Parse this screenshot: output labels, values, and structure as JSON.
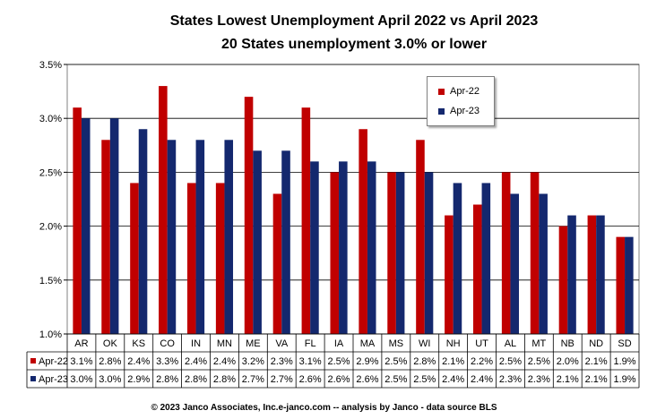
{
  "chart_data": {
    "type": "bar",
    "title": "States Lowest Unemployment April 2022 vs April 2023",
    "subtitle": "20 States  unemployment 3.0% or lower",
    "categories": [
      "AR",
      "OK",
      "KS",
      "CO",
      "IN",
      "MN",
      "ME",
      "VA",
      "FL",
      "IA",
      "MA",
      "MS",
      "WI",
      "NH",
      "UT",
      "AL",
      "MT",
      "NB",
      "ND",
      "SD"
    ],
    "series": [
      {
        "name": "Apr-22",
        "color": "#c00000",
        "values": [
          3.1,
          2.8,
          2.4,
          3.3,
          2.4,
          2.4,
          3.2,
          2.3,
          3.1,
          2.5,
          2.9,
          2.5,
          2.8,
          2.1,
          2.2,
          2.5,
          2.5,
          2.0,
          2.1,
          1.9
        ],
        "labels": [
          "3.1%",
          "2.8%",
          "2.4%",
          "3.3%",
          "2.4%",
          "2.4%",
          "3.2%",
          "2.3%",
          "3.1%",
          "2.5%",
          "2.9%",
          "2.5%",
          "2.8%",
          "2.1%",
          "2.2%",
          "2.5%",
          "2.5%",
          "2.0%",
          "2.1%",
          "1.9%"
        ]
      },
      {
        "name": "Apr-23",
        "color": "#14286e",
        "values": [
          3.0,
          3.0,
          2.9,
          2.8,
          2.8,
          2.8,
          2.7,
          2.7,
          2.6,
          2.6,
          2.6,
          2.5,
          2.5,
          2.4,
          2.4,
          2.3,
          2.3,
          2.1,
          2.1,
          1.9
        ],
        "labels": [
          "3.0%",
          "3.0%",
          "2.9%",
          "2.8%",
          "2.8%",
          "2.8%",
          "2.7%",
          "2.7%",
          "2.6%",
          "2.6%",
          "2.6%",
          "2.5%",
          "2.5%",
          "2.4%",
          "2.4%",
          "2.3%",
          "2.3%",
          "2.1%",
          "2.1%",
          "1.9%"
        ]
      }
    ],
    "ylim": [
      1.0,
      3.5
    ],
    "yticks": [
      1.0,
      1.5,
      2.0,
      2.5,
      3.0,
      3.5
    ],
    "ytick_labels": [
      "1.0%",
      "1.5%",
      "2.0%",
      "2.5%",
      "3.0%",
      "3.5%"
    ],
    "grid": true,
    "legend_position": "top-right",
    "data_table": true
  },
  "footer": "© 2023 Janco Associates, Inc.e-janco.com -- analysis by Janco - data source BLS",
  "colors": {
    "gridline": "#000000",
    "plot_border": "#808080"
  }
}
